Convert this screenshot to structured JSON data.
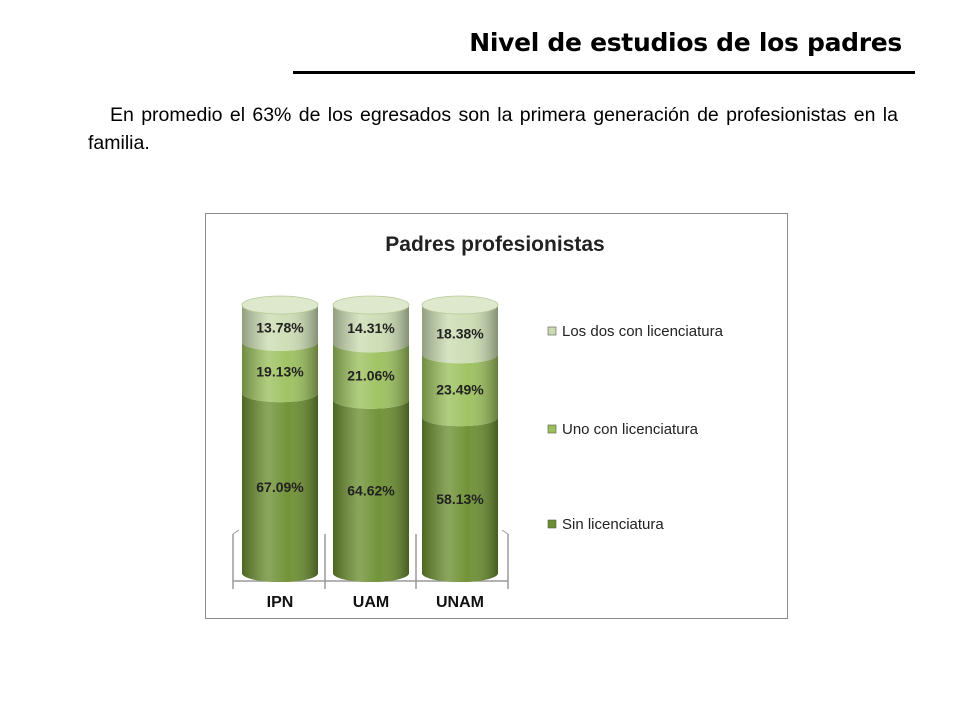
{
  "page": {
    "title": "Nivel de estudios de los padres",
    "intro": "En promedio el 63% de los egresados son la primera generación de profesionistas en la familia."
  },
  "chart_data": {
    "type": "bar",
    "stacked": true,
    "style": "3d-cylinder",
    "title": "Padres profesionistas",
    "xlabel": "",
    "ylabel": "",
    "ylim": [
      0,
      100
    ],
    "grid": false,
    "legend_position": "right",
    "categories": [
      "IPN",
      "UAM",
      "UNAM"
    ],
    "series": [
      {
        "name": "Sin licenciatura",
        "values": [
          67.09,
          64.62,
          58.13
        ],
        "labels": [
          "67.09%",
          "64.62%",
          "58.13%"
        ],
        "color": "#6b8e2f"
      },
      {
        "name": "Uno con licenciatura",
        "values": [
          19.13,
          21.06,
          23.49
        ],
        "labels": [
          "19.13%",
          "21.06%",
          "23.49%"
        ],
        "color": "#9bc05c"
      },
      {
        "name": "Los dos con licenciatura",
        "values": [
          13.78,
          14.31,
          18.38
        ],
        "labels": [
          "13.78%",
          "14.31%",
          "18.38%"
        ],
        "color": "#cbdcb2"
      }
    ]
  }
}
